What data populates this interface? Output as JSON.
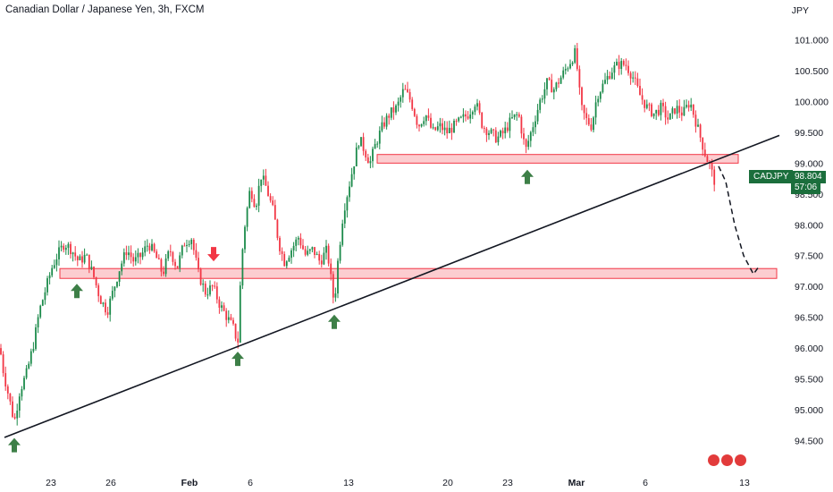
{
  "header": {
    "title": "Canadian Dollar / Japanese Yen, 3h, FXCM",
    "unit": "JPY"
  },
  "price_tag": {
    "symbol": "CADJPY",
    "price": "98.804",
    "countdown": "57:06"
  },
  "colors": {
    "up": "#1b8a4a",
    "down": "#f23645",
    "zone_fill": "rgba(242,54,69,0.25)",
    "zone_stroke": "#f23645",
    "trendline": "#131722",
    "arrow_up": "#3d7f47",
    "arrow_down": "#f23645"
  },
  "logo": {
    "icons": [
      "lightning-icon",
      "circle-icon",
      "circle-icon"
    ]
  },
  "chart_data": {
    "type": "candlestick",
    "title": "Canadian Dollar / Japanese Yen, 3h, FXCM",
    "ylabel": "JPY",
    "ylim": [
      94.3,
      101.45
    ],
    "y_ticks": [
      "94.500",
      "95.000",
      "95.500",
      "96.000",
      "96.500",
      "97.000",
      "97.500",
      "98.000",
      "98.500",
      "99.000",
      "99.500",
      "100.000",
      "100.500",
      "101.000"
    ],
    "x_ticks": [
      {
        "label": "23",
        "pos": 57,
        "strong": false
      },
      {
        "label": "26",
        "pos": 124,
        "strong": false
      },
      {
        "label": "Feb",
        "pos": 212,
        "strong": true
      },
      {
        "label": "6",
        "pos": 280,
        "strong": false
      },
      {
        "label": "13",
        "pos": 390,
        "strong": false
      },
      {
        "label": "20",
        "pos": 501,
        "strong": false
      },
      {
        "label": "23",
        "pos": 568,
        "strong": false
      },
      {
        "label": "Mar",
        "pos": 645,
        "strong": true
      },
      {
        "label": "6",
        "pos": 722,
        "strong": false
      },
      {
        "label": "13",
        "pos": 833,
        "strong": false
      }
    ],
    "price_path": [
      [
        0,
        96.0
      ],
      [
        4,
        95.6
      ],
      [
        10,
        95.2
      ],
      [
        16,
        94.8
      ],
      [
        22,
        95.3
      ],
      [
        30,
        95.6
      ],
      [
        38,
        96.1
      ],
      [
        44,
        96.6
      ],
      [
        52,
        97.0
      ],
      [
        58,
        97.3
      ],
      [
        64,
        97.5
      ],
      [
        72,
        97.7
      ],
      [
        80,
        97.6
      ],
      [
        88,
        97.4
      ],
      [
        96,
        97.5
      ],
      [
        104,
        97.2
      ],
      [
        112,
        96.8
      ],
      [
        120,
        96.6
      ],
      [
        126,
        96.9
      ],
      [
        134,
        97.3
      ],
      [
        142,
        97.6
      ],
      [
        150,
        97.4
      ],
      [
        158,
        97.5
      ],
      [
        166,
        97.7
      ],
      [
        174,
        97.5
      ],
      [
        182,
        97.2
      ],
      [
        190,
        97.6
      ],
      [
        198,
        97.3
      ],
      [
        206,
        97.7
      ],
      [
        214,
        97.8
      ],
      [
        222,
        97.2
      ],
      [
        230,
        96.9
      ],
      [
        238,
        97.0
      ],
      [
        246,
        96.7
      ],
      [
        254,
        96.5
      ],
      [
        262,
        96.3
      ],
      [
        266,
        96.05
      ],
      [
        270,
        97.4
      ],
      [
        274,
        98.0
      ],
      [
        280,
        98.6
      ],
      [
        286,
        98.3
      ],
      [
        292,
        98.8
      ],
      [
        298,
        98.6
      ],
      [
        306,
        98.2
      ],
      [
        312,
        97.7
      ],
      [
        318,
        97.4
      ],
      [
        326,
        97.6
      ],
      [
        334,
        97.8
      ],
      [
        342,
        97.5
      ],
      [
        350,
        97.6
      ],
      [
        358,
        97.4
      ],
      [
        366,
        97.6
      ],
      [
        374,
        96.7
      ],
      [
        378,
        97.4
      ],
      [
        384,
        98.2
      ],
      [
        390,
        98.6
      ],
      [
        396,
        99.0
      ],
      [
        402,
        99.4
      ],
      [
        408,
        99.2
      ],
      [
        414,
        99.0
      ],
      [
        420,
        99.3
      ],
      [
        428,
        99.6
      ],
      [
        436,
        99.8
      ],
      [
        444,
        99.9
      ],
      [
        452,
        100.2
      ],
      [
        460,
        100.0
      ],
      [
        468,
        99.6
      ],
      [
        476,
        99.8
      ],
      [
        484,
        99.5
      ],
      [
        492,
        99.6
      ],
      [
        500,
        99.5
      ],
      [
        508,
        99.6
      ],
      [
        516,
        99.7
      ],
      [
        524,
        99.8
      ],
      [
        532,
        100.0
      ],
      [
        540,
        99.6
      ],
      [
        548,
        99.5
      ],
      [
        556,
        99.4
      ],
      [
        564,
        99.5
      ],
      [
        572,
        99.7
      ],
      [
        580,
        99.8
      ],
      [
        588,
        99.2
      ],
      [
        596,
        99.6
      ],
      [
        604,
        100.0
      ],
      [
        612,
        100.3
      ],
      [
        620,
        100.2
      ],
      [
        628,
        100.4
      ],
      [
        636,
        100.6
      ],
      [
        644,
        100.8
      ],
      [
        650,
        99.9
      ],
      [
        656,
        99.7
      ],
      [
        662,
        99.6
      ],
      [
        668,
        100.1
      ],
      [
        676,
        100.3
      ],
      [
        684,
        100.5
      ],
      [
        692,
        100.6
      ],
      [
        700,
        100.6
      ],
      [
        708,
        100.4
      ],
      [
        716,
        100.1
      ],
      [
        724,
        99.9
      ],
      [
        732,
        99.8
      ],
      [
        740,
        99.9
      ],
      [
        748,
        99.7
      ],
      [
        756,
        99.9
      ],
      [
        764,
        99.8
      ],
      [
        772,
        100.0
      ],
      [
        778,
        99.7
      ],
      [
        784,
        99.4
      ],
      [
        790,
        99.1
      ],
      [
        796,
        98.9
      ],
      [
        798,
        98.7
      ],
      [
        804,
        98.8
      ]
    ],
    "zones": [
      {
        "name": "resistance-zone-upper",
        "x1": 422,
        "x2": 826,
        "y_top": 99.14,
        "y_bottom": 99.0
      },
      {
        "name": "support-zone-lower",
        "x1": 67,
        "x2": 869,
        "y_top": 97.29,
        "y_bottom": 97.13
      }
    ],
    "trendline": {
      "x1": 5,
      "y1": 94.55,
      "x2": 872,
      "y2": 99.45
    },
    "projection": [
      [
        804,
        98.95
      ],
      [
        812,
        98.7
      ],
      [
        822,
        98.0
      ],
      [
        832,
        97.5
      ],
      [
        843,
        97.2
      ],
      [
        848,
        97.3
      ]
    ],
    "arrows": [
      {
        "dir": "up",
        "x": 16,
        "price": 94.6
      },
      {
        "dir": "up",
        "x": 86,
        "price": 97.1
      },
      {
        "dir": "down",
        "x": 239,
        "price": 97.35
      },
      {
        "dir": "up",
        "x": 266,
        "price": 96.0
      },
      {
        "dir": "up",
        "x": 374,
        "price": 96.6
      },
      {
        "dir": "up",
        "x": 590,
        "price": 98.95
      }
    ]
  }
}
